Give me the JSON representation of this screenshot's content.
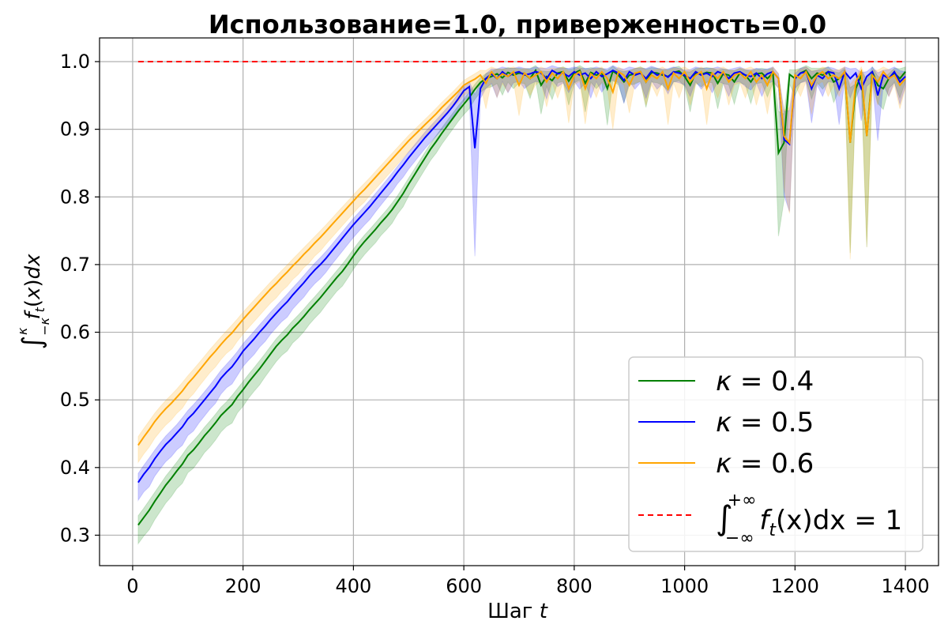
{
  "chart_data": {
    "type": "line",
    "title": "Использование=1.0, приверженность=0.0",
    "xlabel_text": "Шаг ",
    "xlabel_var": "t",
    "ylabel": "∫_{-κ}^{κ} f_t(x) dx",
    "xlim": [
      -60,
      1460
    ],
    "ylim": [
      0.255,
      1.035
    ],
    "xticks": [
      0,
      200,
      400,
      600,
      800,
      1000,
      1200,
      1400
    ],
    "yticks": [
      0.3,
      0.4,
      0.5,
      0.6,
      0.7,
      0.8,
      0.9,
      1.0
    ],
    "grid": true,
    "legend_position": "lower right",
    "x": [
      10,
      20,
      30,
      40,
      50,
      60,
      70,
      80,
      90,
      100,
      110,
      120,
      130,
      140,
      150,
      160,
      170,
      180,
      190,
      200,
      210,
      220,
      230,
      240,
      250,
      260,
      270,
      280,
      290,
      300,
      310,
      320,
      330,
      340,
      350,
      360,
      370,
      380,
      390,
      400,
      410,
      420,
      430,
      440,
      450,
      460,
      470,
      480,
      490,
      500,
      510,
      520,
      530,
      540,
      550,
      560,
      570,
      580,
      590,
      600,
      610,
      620,
      630,
      640,
      650,
      660,
      670,
      680,
      690,
      700,
      710,
      720,
      730,
      740,
      750,
      760,
      770,
      780,
      790,
      800,
      810,
      820,
      830,
      840,
      850,
      860,
      870,
      880,
      890,
      900,
      910,
      920,
      930,
      940,
      950,
      960,
      970,
      980,
      990,
      1000,
      1010,
      1020,
      1030,
      1040,
      1050,
      1060,
      1070,
      1080,
      1090,
      1100,
      1110,
      1120,
      1130,
      1140,
      1150,
      1160,
      1170,
      1180,
      1190,
      1200,
      1210,
      1220,
      1230,
      1240,
      1250,
      1260,
      1270,
      1280,
      1290,
      1300,
      1310,
      1320,
      1330,
      1340,
      1350,
      1360,
      1370,
      1380,
      1390,
      1400
    ],
    "series": [
      {
        "name": "κ =  0.4",
        "color": "#008000",
        "values": [
          0.315,
          0.326,
          0.337,
          0.35,
          0.362,
          0.374,
          0.384,
          0.395,
          0.405,
          0.418,
          0.426,
          0.436,
          0.447,
          0.456,
          0.466,
          0.477,
          0.485,
          0.493,
          0.505,
          0.515,
          0.526,
          0.536,
          0.546,
          0.557,
          0.568,
          0.579,
          0.588,
          0.596,
          0.606,
          0.614,
          0.623,
          0.633,
          0.642,
          0.651,
          0.661,
          0.671,
          0.681,
          0.69,
          0.701,
          0.713,
          0.724,
          0.734,
          0.743,
          0.752,
          0.762,
          0.771,
          0.781,
          0.793,
          0.805,
          0.819,
          0.832,
          0.845,
          0.858,
          0.871,
          0.882,
          0.894,
          0.905,
          0.916,
          0.927,
          0.937,
          0.947,
          0.959,
          0.969,
          0.975,
          0.978,
          0.982,
          0.976,
          0.984,
          0.98,
          0.983,
          0.982,
          0.975,
          0.987,
          0.965,
          0.978,
          0.972,
          0.983,
          0.985,
          0.971,
          0.983,
          0.987,
          0.968,
          0.984,
          0.98,
          0.983,
          0.96,
          0.986,
          0.98,
          0.97,
          0.98,
          0.982,
          0.985,
          0.97,
          0.984,
          0.983,
          0.98,
          0.978,
          0.984,
          0.986,
          0.978,
          0.965,
          0.983,
          0.981,
          0.984,
          0.983,
          0.968,
          0.982,
          0.98,
          0.97,
          0.983,
          0.98,
          0.97,
          0.982,
          0.983,
          0.975,
          0.983,
          0.865,
          0.88,
          0.981,
          0.975,
          0.983,
          0.987,
          0.975,
          0.983,
          0.98,
          0.985,
          0.97,
          0.975,
          0.983,
          0.88,
          0.96,
          0.98,
          0.89,
          0.985,
          0.965,
          0.96,
          0.975,
          0.983,
          0.975,
          0.985
        ]
      },
      {
        "name": "κ =  0.5",
        "color": "#0000ff",
        "values": [
          0.378,
          0.39,
          0.4,
          0.413,
          0.424,
          0.434,
          0.442,
          0.451,
          0.46,
          0.472,
          0.48,
          0.49,
          0.5,
          0.51,
          0.52,
          0.532,
          0.541,
          0.549,
          0.56,
          0.572,
          0.581,
          0.59,
          0.6,
          0.609,
          0.619,
          0.628,
          0.637,
          0.645,
          0.655,
          0.664,
          0.673,
          0.683,
          0.692,
          0.7,
          0.709,
          0.719,
          0.729,
          0.739,
          0.749,
          0.759,
          0.768,
          0.777,
          0.786,
          0.796,
          0.806,
          0.816,
          0.826,
          0.837,
          0.847,
          0.858,
          0.868,
          0.878,
          0.888,
          0.897,
          0.906,
          0.915,
          0.924,
          0.934,
          0.945,
          0.957,
          0.963,
          0.872,
          0.96,
          0.975,
          0.982,
          0.975,
          0.985,
          0.978,
          0.983,
          0.985,
          0.98,
          0.982,
          0.985,
          0.983,
          0.975,
          0.987,
          0.982,
          0.983,
          0.978,
          0.985,
          0.98,
          0.983,
          0.975,
          0.985,
          0.978,
          0.982,
          0.987,
          0.983,
          0.972,
          0.985,
          0.98,
          0.983,
          0.975,
          0.986,
          0.98,
          0.982,
          0.977,
          0.985,
          0.983,
          0.98,
          0.975,
          0.985,
          0.98,
          0.983,
          0.978,
          0.985,
          0.982,
          0.975,
          0.983,
          0.985,
          0.98,
          0.978,
          0.983,
          0.975,
          0.982,
          0.985,
          0.975,
          0.885,
          0.878,
          0.975,
          0.983,
          0.985,
          0.96,
          0.98,
          0.975,
          0.985,
          0.983,
          0.96,
          0.985,
          0.975,
          0.983,
          0.96,
          0.978,
          0.985,
          0.95,
          0.98,
          0.975,
          0.985,
          0.97,
          0.978
        ]
      },
      {
        "name": "κ =  0.6",
        "color": "#ffa500",
        "values": [
          0.433,
          0.445,
          0.456,
          0.468,
          0.478,
          0.487,
          0.495,
          0.504,
          0.513,
          0.524,
          0.533,
          0.543,
          0.553,
          0.563,
          0.572,
          0.582,
          0.591,
          0.599,
          0.609,
          0.619,
          0.628,
          0.637,
          0.646,
          0.655,
          0.664,
          0.672,
          0.681,
          0.689,
          0.698,
          0.706,
          0.715,
          0.723,
          0.732,
          0.74,
          0.749,
          0.758,
          0.767,
          0.776,
          0.785,
          0.794,
          0.803,
          0.811,
          0.82,
          0.829,
          0.838,
          0.847,
          0.856,
          0.865,
          0.874,
          0.883,
          0.891,
          0.899,
          0.907,
          0.915,
          0.923,
          0.932,
          0.94,
          0.948,
          0.956,
          0.965,
          0.97,
          0.974,
          0.98,
          0.968,
          0.985,
          0.975,
          0.982,
          0.978,
          0.985,
          0.965,
          0.983,
          0.975,
          0.98,
          0.985,
          0.97,
          0.983,
          0.975,
          0.985,
          0.96,
          0.98,
          0.985,
          0.96,
          0.982,
          0.975,
          0.985,
          0.975,
          0.955,
          0.985,
          0.98,
          0.965,
          0.983,
          0.985,
          0.97,
          0.98,
          0.975,
          0.985,
          0.96,
          0.983,
          0.975,
          0.985,
          0.97,
          0.98,
          0.985,
          0.96,
          0.983,
          0.975,
          0.985,
          0.97,
          0.98,
          0.983,
          0.975,
          0.985,
          0.97,
          0.98,
          0.965,
          0.985,
          0.975,
          0.89,
          0.88,
          0.98,
          0.975,
          0.985,
          0.965,
          0.98,
          0.985,
          0.975,
          0.98,
          0.975,
          0.985,
          0.88,
          0.97,
          0.985,
          0.89,
          0.98,
          0.97,
          0.985,
          0.975,
          0.98,
          0.965,
          0.975
        ]
      },
      {
        "name": "∫_{-∞}^{+∞} f_t(x) dx = 1",
        "color": "#ff0000",
        "dashed": true,
        "x": [
          10,
          1400
        ],
        "values": [
          1.0,
          1.0
        ]
      }
    ],
    "legend": [
      {
        "prefix": "κ = ",
        "value": " 0.4"
      },
      {
        "prefix": "κ = ",
        "value": " 0.5"
      },
      {
        "prefix": "κ = ",
        "value": " 0.6"
      },
      {
        "formula": "∫",
        "sub": "−∞",
        "sup": "+∞",
        "body": "f",
        "body_sub": "t",
        "tail": "(x)dx = 1"
      }
    ]
  }
}
